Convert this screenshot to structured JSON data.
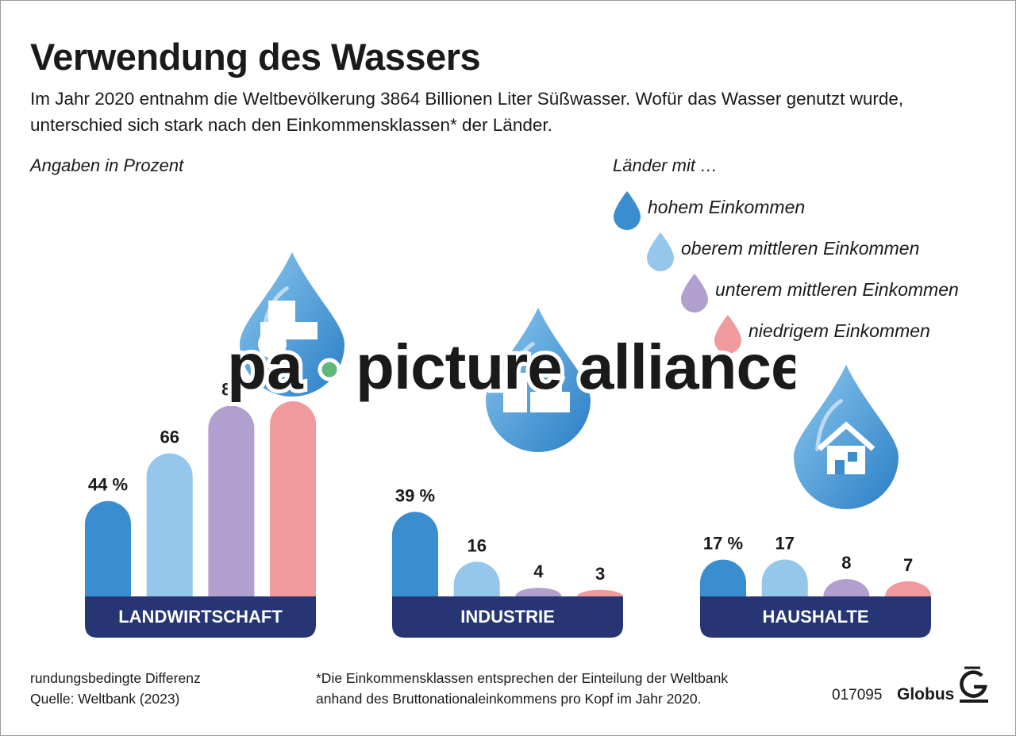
{
  "title": "Verwendung des Wassers",
  "subtitle": "Im Jahr 2020 entnahm die Weltbevölkerung 3864 Billionen Liter Süßwasser. Wofür das Wasser genutzt wurde, unterschied sich stark nach den Einkommensklassen* der Länder.",
  "unit_note": "Angaben in Prozent",
  "legend": {
    "title": "Länder mit …",
    "items": [
      {
        "label": "hohem Einkommen",
        "color": "#3a8ecf"
      },
      {
        "label": "oberem mittleren Einkommen",
        "color": "#95c6ec"
      },
      {
        "label": "unterem mittleren Einkommen",
        "color": "#b09fcf"
      },
      {
        "label": "niedrigem Einkommen",
        "color": "#f09a9d"
      }
    ]
  },
  "chart_data": {
    "type": "bar",
    "categories": [
      "LANDWIRTSCHAFT",
      "INDUSTRIE",
      "HAUSHALTE"
    ],
    "series": [
      {
        "name": "hohem Einkommen",
        "color": "#3a8ecf",
        "values": [
          44,
          39,
          17
        ],
        "labels": [
          "44 %",
          "39 %",
          "17 %"
        ]
      },
      {
        "name": "oberem mittleren Einkommen",
        "color": "#95c6ec",
        "values": [
          66,
          16,
          17
        ],
        "labels": [
          "66",
          "16",
          "17"
        ]
      },
      {
        "name": "unterem mittleren Einkommen",
        "color": "#b09fcf",
        "values": [
          88,
          4,
          8
        ],
        "labels": [
          "88",
          "4",
          "8"
        ]
      },
      {
        "name": "niedrigem Einkommen",
        "color": "#f09a9d",
        "values": [
          90,
          3,
          7
        ],
        "labels": [
          "90",
          "3",
          "7"
        ]
      }
    ],
    "category_icons": [
      "tractor-drop-icon",
      "factory-drop-icon",
      "house-drop-icon"
    ],
    "category_bar_color": "#273575",
    "ylim": [
      0,
      100
    ],
    "grid": false,
    "legend_position": "top-right"
  },
  "footer": {
    "note": "rundungsbedingte Differenz",
    "source": "Quelle: Weltbank (2023)",
    "footnote_line1": "*Die Einkommensklassen entsprechen der Einteilung der Weltbank",
    "footnote_line2": "anhand des Bruttonationaleinkommens pro Kopf im Jahr 2020.",
    "code": "017095",
    "brand": "Globus"
  },
  "watermark": {
    "text1": "pa",
    "text2": "picture alliance"
  }
}
